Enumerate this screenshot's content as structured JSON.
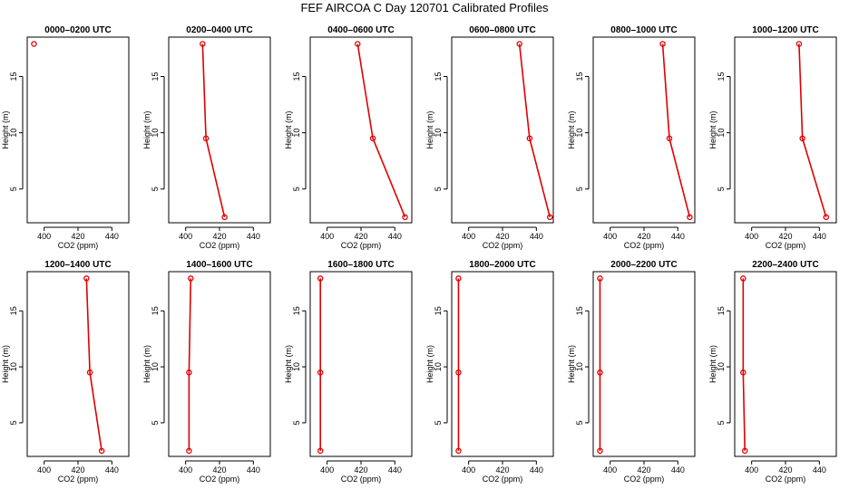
{
  "title": "FEF AIRCOA C  Day 120701  Calibrated Profiles",
  "colors": {
    "series": "#e00000",
    "axis": "#000000"
  },
  "chart_data": [
    {
      "type": "line",
      "title": "0000–0200 UTC",
      "xlabel": "CO2 (ppm)",
      "ylabel": "Height (m)",
      "xlim": [
        390,
        450
      ],
      "ylim": [
        2,
        18.5
      ],
      "xticks": [
        400,
        420,
        440
      ],
      "yticks": [
        5,
        10,
        15
      ],
      "points": [
        {
          "x": 394,
          "y": 17.9
        }
      ]
    },
    {
      "type": "line",
      "title": "0200–0400 UTC",
      "xlabel": "CO2 (ppm)",
      "ylabel": "Height (m)",
      "xlim": [
        390,
        450
      ],
      "ylim": [
        2,
        18.5
      ],
      "xticks": [
        400,
        420,
        440
      ],
      "yticks": [
        5,
        10,
        15
      ],
      "points": [
        {
          "x": 410,
          "y": 17.9
        },
        {
          "x": 412,
          "y": 9.5
        },
        {
          "x": 423,
          "y": 2.5
        }
      ]
    },
    {
      "type": "line",
      "title": "0400–0600 UTC",
      "xlabel": "CO2 (ppm)",
      "ylabel": "Height (m)",
      "xlim": [
        390,
        450
      ],
      "ylim": [
        2,
        18.5
      ],
      "xticks": [
        400,
        420,
        440
      ],
      "yticks": [
        5,
        10,
        15
      ],
      "points": [
        {
          "x": 418,
          "y": 17.9
        },
        {
          "x": 427,
          "y": 9.5
        },
        {
          "x": 446,
          "y": 2.5
        }
      ]
    },
    {
      "type": "line",
      "title": "0600–0800 UTC",
      "xlabel": "CO2 (ppm)",
      "ylabel": "Height (m)",
      "xlim": [
        390,
        450
      ],
      "ylim": [
        2,
        18.5
      ],
      "xticks": [
        400,
        420,
        440
      ],
      "yticks": [
        5,
        10,
        15
      ],
      "points": [
        {
          "x": 430,
          "y": 17.9
        },
        {
          "x": 436,
          "y": 9.5
        },
        {
          "x": 448,
          "y": 2.5
        }
      ]
    },
    {
      "type": "line",
      "title": "0800–1000 UTC",
      "xlabel": "CO2 (ppm)",
      "ylabel": "Height (m)",
      "xlim": [
        390,
        450
      ],
      "ylim": [
        2,
        18.5
      ],
      "xticks": [
        400,
        420,
        440
      ],
      "yticks": [
        5,
        10,
        15
      ],
      "points": [
        {
          "x": 431,
          "y": 17.9
        },
        {
          "x": 435,
          "y": 9.5
        },
        {
          "x": 447,
          "y": 2.5
        }
      ]
    },
    {
      "type": "line",
      "title": "1000–1200 UTC",
      "xlabel": "CO2 (ppm)",
      "ylabel": "Height (m)",
      "xlim": [
        390,
        450
      ],
      "ylim": [
        2,
        18.5
      ],
      "xticks": [
        400,
        420,
        440
      ],
      "yticks": [
        5,
        10,
        15
      ],
      "points": [
        {
          "x": 428,
          "y": 17.9
        },
        {
          "x": 430,
          "y": 9.5
        },
        {
          "x": 444,
          "y": 2.5
        }
      ]
    },
    {
      "type": "line",
      "title": "1200–1400 UTC",
      "xlabel": "CO2 (ppm)",
      "ylabel": "Height (m)",
      "xlim": [
        390,
        450
      ],
      "ylim": [
        2,
        18.5
      ],
      "xticks": [
        400,
        420,
        440
      ],
      "yticks": [
        5,
        10,
        15
      ],
      "points": [
        {
          "x": 425,
          "y": 17.9
        },
        {
          "x": 427,
          "y": 9.5
        },
        {
          "x": 434,
          "y": 2.5
        }
      ]
    },
    {
      "type": "line",
      "title": "1400–1600 UTC",
      "xlabel": "CO2 (ppm)",
      "ylabel": "Height (m)",
      "xlim": [
        390,
        450
      ],
      "ylim": [
        2,
        18.5
      ],
      "xticks": [
        400,
        420,
        440
      ],
      "yticks": [
        5,
        10,
        15
      ],
      "points": [
        {
          "x": 403,
          "y": 17.9
        },
        {
          "x": 402,
          "y": 9.5
        },
        {
          "x": 402,
          "y": 2.5
        }
      ]
    },
    {
      "type": "line",
      "title": "1600–1800 UTC",
      "xlabel": "CO2 (ppm)",
      "ylabel": "Height (m)",
      "xlim": [
        390,
        450
      ],
      "ylim": [
        2,
        18.5
      ],
      "xticks": [
        400,
        420,
        440
      ],
      "yticks": [
        5,
        10,
        15
      ],
      "points": [
        {
          "x": 396,
          "y": 17.9
        },
        {
          "x": 396,
          "y": 9.5
        },
        {
          "x": 396,
          "y": 2.5
        }
      ]
    },
    {
      "type": "line",
      "title": "1800–2000 UTC",
      "xlabel": "CO2 (ppm)",
      "ylabel": "Height (m)",
      "xlim": [
        390,
        450
      ],
      "ylim": [
        2,
        18.5
      ],
      "xticks": [
        400,
        420,
        440
      ],
      "yticks": [
        5,
        10,
        15
      ],
      "points": [
        {
          "x": 394,
          "y": 17.9
        },
        {
          "x": 394,
          "y": 9.5
        },
        {
          "x": 394,
          "y": 2.5
        }
      ]
    },
    {
      "type": "line",
      "title": "2000–2200 UTC",
      "xlabel": "CO2 (ppm)",
      "ylabel": "Height (m)",
      "xlim": [
        390,
        450
      ],
      "ylim": [
        2,
        18.5
      ],
      "xticks": [
        400,
        420,
        440
      ],
      "yticks": [
        5,
        10,
        15
      ],
      "points": [
        {
          "x": 394,
          "y": 17.9
        },
        {
          "x": 394,
          "y": 9.5
        },
        {
          "x": 394,
          "y": 2.5
        }
      ]
    },
    {
      "type": "line",
      "title": "2200–2400 UTC",
      "xlabel": "CO2 (ppm)",
      "ylabel": "Height (m)",
      "xlim": [
        390,
        450
      ],
      "ylim": [
        2,
        18.5
      ],
      "xticks": [
        400,
        420,
        440
      ],
      "yticks": [
        5,
        10,
        15
      ],
      "points": [
        {
          "x": 395,
          "y": 17.9
        },
        {
          "x": 395,
          "y": 9.5
        },
        {
          "x": 396,
          "y": 2.5
        }
      ]
    }
  ]
}
